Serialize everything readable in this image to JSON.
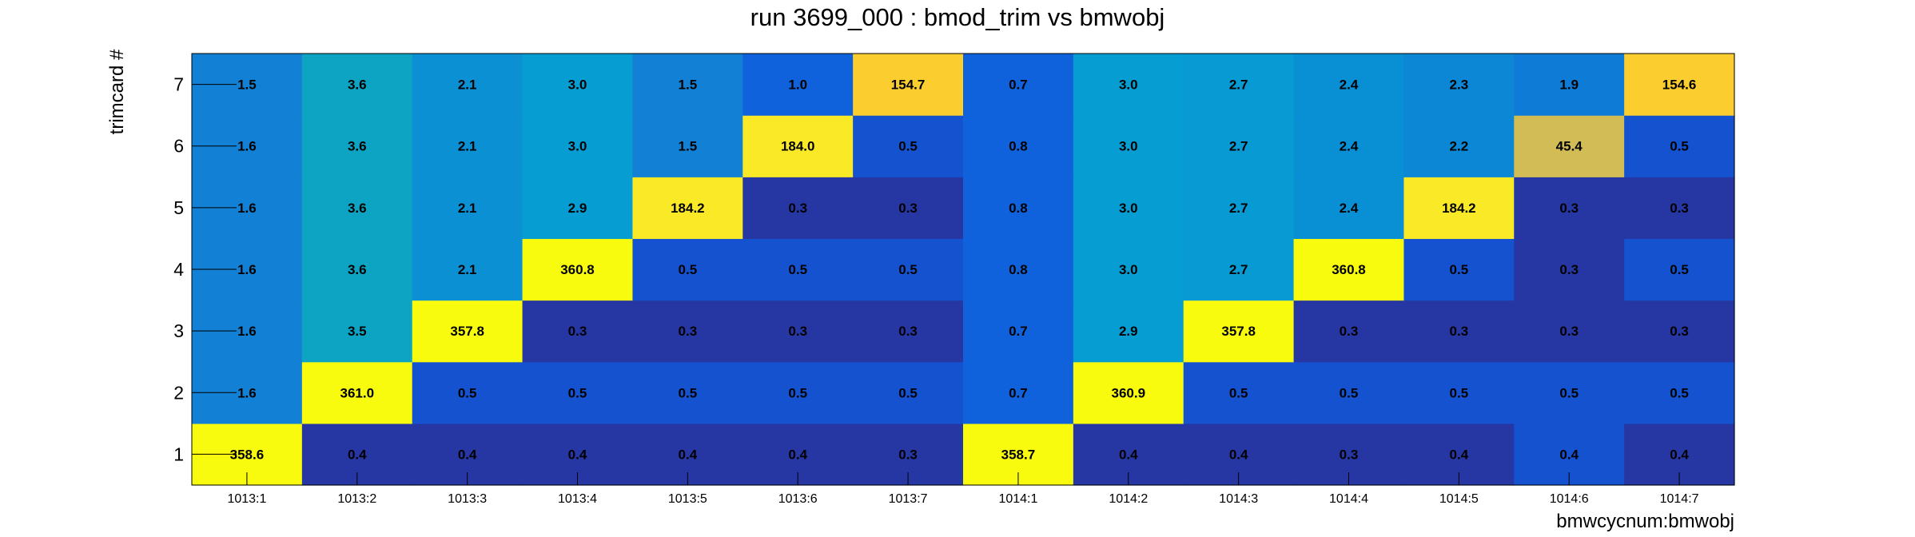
{
  "chart_data": {
    "type": "heatmap",
    "title": "run 3699_000 : bmod_trim vs bmwobj",
    "xlabel": "bmwcycnum:bmwobj",
    "ylabel": "trimcard #",
    "x_categories": [
      "1013:1",
      "1013:2",
      "1013:3",
      "1013:4",
      "1013:5",
      "1013:6",
      "1013:7",
      "1014:1",
      "1014:2",
      "1014:3",
      "1014:4",
      "1014:5",
      "1014:6",
      "1014:7"
    ],
    "y_categories": [
      "1",
      "2",
      "3",
      "4",
      "5",
      "6",
      "7"
    ],
    "values": [
      [
        "358.6",
        "0.4",
        "0.4",
        "0.4",
        "0.4",
        "0.4",
        "0.3",
        "358.7",
        "0.4",
        "0.4",
        "0.3",
        "0.4",
        "0.4",
        "0.4"
      ],
      [
        "1.6",
        "361.0",
        "0.5",
        "0.5",
        "0.5",
        "0.5",
        "0.5",
        "0.7",
        "360.9",
        "0.5",
        "0.5",
        "0.5",
        "0.5",
        "0.5"
      ],
      [
        "1.6",
        "3.5",
        "357.8",
        "0.3",
        "0.3",
        "0.3",
        "0.3",
        "0.7",
        "2.9",
        "357.8",
        "0.3",
        "0.3",
        "0.3",
        "0.3"
      ],
      [
        "1.6",
        "3.6",
        "2.1",
        "360.8",
        "0.5",
        "0.5",
        "0.5",
        "0.8",
        "3.0",
        "2.7",
        "360.8",
        "0.5",
        "0.3",
        "0.5"
      ],
      [
        "1.6",
        "3.6",
        "2.1",
        "2.9",
        "184.2",
        "0.3",
        "0.3",
        "0.8",
        "3.0",
        "2.7",
        "2.4",
        "184.2",
        "0.3",
        "0.3"
      ],
      [
        "1.6",
        "3.6",
        "2.1",
        "3.0",
        "1.5",
        "184.0",
        "0.5",
        "0.8",
        "3.0",
        "2.7",
        "2.4",
        "2.2",
        "45.4",
        "0.5"
      ],
      [
        "1.5",
        "3.6",
        "2.1",
        "3.0",
        "1.5",
        "1.0",
        "154.7",
        "0.7",
        "3.0",
        "2.7",
        "2.4",
        "2.3",
        "1.9",
        "154.6"
      ]
    ],
    "colors": [
      [
        "#f9fb0e",
        "#2637a3",
        "#2637a3",
        "#2637a3",
        "#2637a3",
        "#2637a3",
        "#2637a3",
        "#f9fb0e",
        "#2637a3",
        "#2637a3",
        "#2637a3",
        "#2637a3",
        "#1552cf",
        "#2637a3"
      ],
      [
        "#1280d4",
        "#f9fb0e",
        "#1552cf",
        "#1552cf",
        "#1552cf",
        "#1552cf",
        "#1552cf",
        "#1062dc",
        "#f9fb0e",
        "#1552cf",
        "#1552cf",
        "#1552cf",
        "#1552cf",
        "#1552cf"
      ],
      [
        "#1280d4",
        "#0da4c3",
        "#f9fb0e",
        "#2637a3",
        "#2637a3",
        "#2637a3",
        "#2637a3",
        "#1062dc",
        "#069dd3",
        "#f9fb0e",
        "#2637a3",
        "#2637a3",
        "#2637a3",
        "#2637a3"
      ],
      [
        "#1280d4",
        "#0da4c3",
        "#0b90d3",
        "#f9fb0e",
        "#1552cf",
        "#1552cf",
        "#1552cf",
        "#1062dc",
        "#069dd3",
        "#089ad3",
        "#f9fb0e",
        "#1552cf",
        "#2637a3",
        "#1552cf"
      ],
      [
        "#1280d4",
        "#0da4c3",
        "#0b90d3",
        "#069dd3",
        "#f9e926",
        "#2637a3",
        "#2637a3",
        "#1062dc",
        "#069dd3",
        "#089ad3",
        "#098fd4",
        "#f9e926",
        "#2637a3",
        "#2637a3"
      ],
      [
        "#1280d4",
        "#0da4c3",
        "#0b90d3",
        "#069dd3",
        "#1280d4",
        "#f9e926",
        "#1552cf",
        "#1062dc",
        "#069dd3",
        "#089ad3",
        "#098fd4",
        "#0b87d6",
        "#d2bc55",
        "#1552cf"
      ],
      [
        "#1280d4",
        "#0da4c3",
        "#0b90d3",
        "#069dd3",
        "#1280d4",
        "#1062dc",
        "#fbcd2e",
        "#1062dc",
        "#069dd3",
        "#089ad3",
        "#098fd4",
        "#0b87d6",
        "#0e7cd6",
        "#fbcd2e"
      ]
    ]
  }
}
